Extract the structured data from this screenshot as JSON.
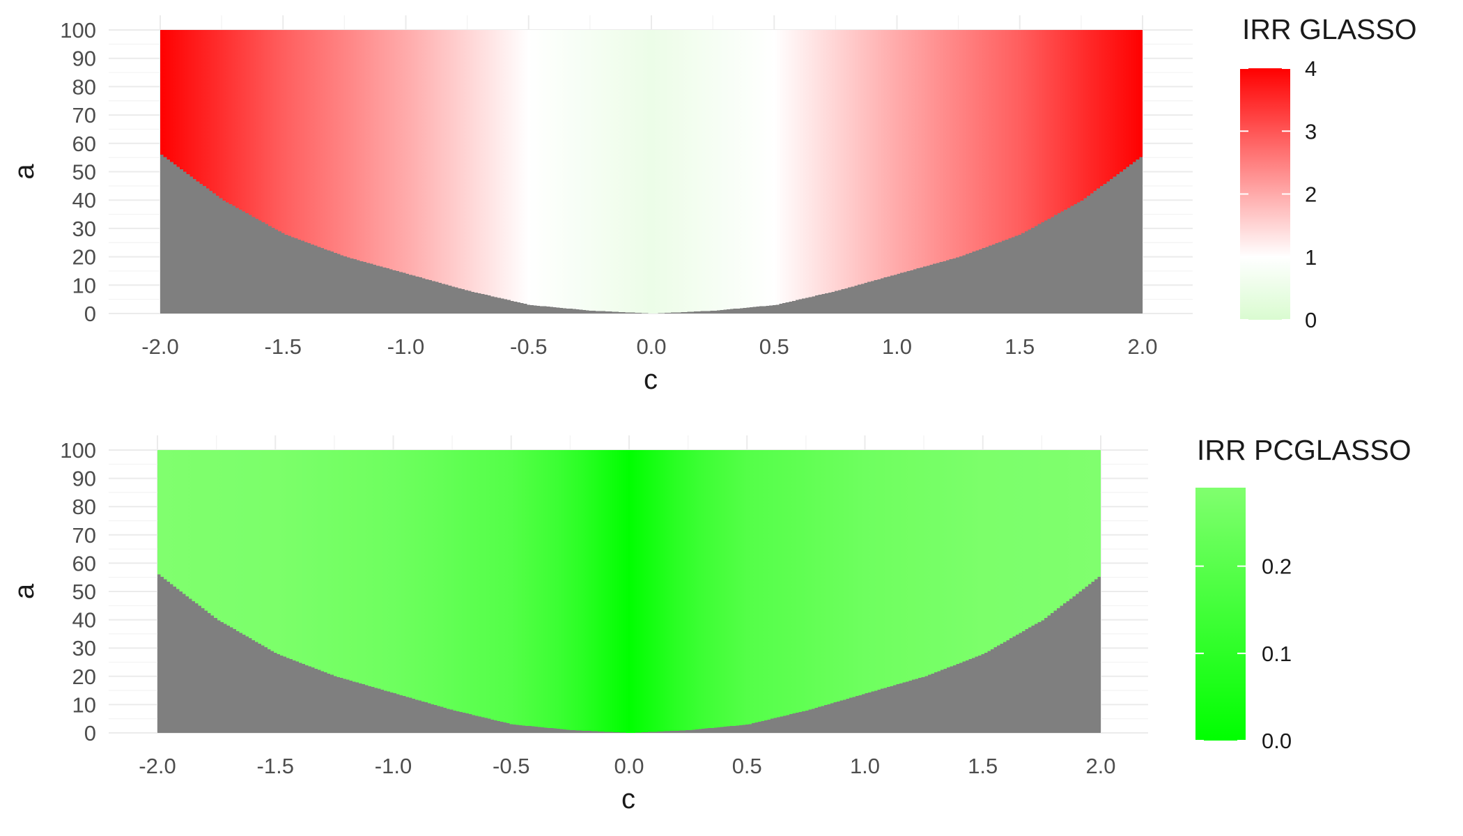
{
  "chart_data": [
    {
      "type": "heatmap",
      "xlabel": "c",
      "ylabel": "a",
      "xlim": [
        -2.0,
        2.0
      ],
      "ylim": [
        0,
        100
      ],
      "x_ticks": [
        "-2.0",
        "-1.5",
        "-1.0",
        "-0.5",
        "0.0",
        "0.5",
        "1.0",
        "1.5",
        "2.0"
      ],
      "y_ticks": [
        "0",
        "10",
        "20",
        "30",
        "40",
        "50",
        "60",
        "70",
        "80",
        "90",
        "100"
      ],
      "legend": {
        "title": "IRR GLASSO",
        "position": "right",
        "labels": [
          "4",
          "3",
          "2",
          "1",
          "0"
        ],
        "range": [
          0,
          4
        ],
        "colors": {
          "low": "#d9fbd0",
          "mid": "#ffffff",
          "high": "#ff0000",
          "midpoint": 1
        }
      },
      "na_color": "#7f7f7f",
      "na_boundary": [
        {
          "c": 0.0,
          "a": 0
        },
        {
          "c": 0.25,
          "a": 1
        },
        {
          "c": 0.5,
          "a": 3
        },
        {
          "c": 0.75,
          "a": 8
        },
        {
          "c": 1.0,
          "a": 14
        },
        {
          "c": 1.25,
          "a": 20
        },
        {
          "c": 1.5,
          "a": 28
        },
        {
          "c": 1.75,
          "a": 40
        },
        {
          "c": 2.0,
          "a": 56
        }
      ],
      "irr_profile": [
        {
          "c": 0.0,
          "value": 0.5
        },
        {
          "c": 0.5,
          "value": 1.0
        },
        {
          "c": 1.0,
          "value": 2.0
        },
        {
          "c": 1.5,
          "value": 2.9
        },
        {
          "c": 2.0,
          "value": 4.0
        }
      ]
    },
    {
      "type": "heatmap",
      "xlabel": "c",
      "ylabel": "a",
      "xlim": [
        -2.0,
        2.0
      ],
      "ylim": [
        0,
        100
      ],
      "x_ticks": [
        "-2.0",
        "-1.5",
        "-1.0",
        "-0.5",
        "0.0",
        "0.5",
        "1.0",
        "1.5",
        "2.0"
      ],
      "y_ticks": [
        "0",
        "10",
        "20",
        "30",
        "40",
        "50",
        "60",
        "70",
        "80",
        "90",
        "100"
      ],
      "legend": {
        "title": "IRR PCGLASSO",
        "position": "right",
        "labels": [
          "0.2",
          "0.1",
          "0.0"
        ],
        "ticks": [
          0.2,
          0.1,
          0.0
        ],
        "range": [
          0,
          0.29
        ],
        "colors": {
          "low": "#00ff00",
          "high": "#80ff6e"
        }
      },
      "na_color": "#7f7f7f",
      "na_boundary": [
        {
          "c": 0.0,
          "a": 0
        },
        {
          "c": 0.25,
          "a": 1
        },
        {
          "c": 0.5,
          "a": 3
        },
        {
          "c": 0.75,
          "a": 8
        },
        {
          "c": 1.0,
          "a": 14
        },
        {
          "c": 1.25,
          "a": 20
        },
        {
          "c": 1.5,
          "a": 28
        },
        {
          "c": 1.75,
          "a": 40
        },
        {
          "c": 2.0,
          "a": 56
        }
      ],
      "irr_profile": [
        {
          "c": 0.0,
          "value": 0.0
        },
        {
          "c": 0.25,
          "value": 0.12
        },
        {
          "c": 0.5,
          "value": 0.19
        },
        {
          "c": 1.0,
          "value": 0.25
        },
        {
          "c": 1.5,
          "value": 0.28
        },
        {
          "c": 2.0,
          "value": 0.29
        }
      ]
    }
  ]
}
